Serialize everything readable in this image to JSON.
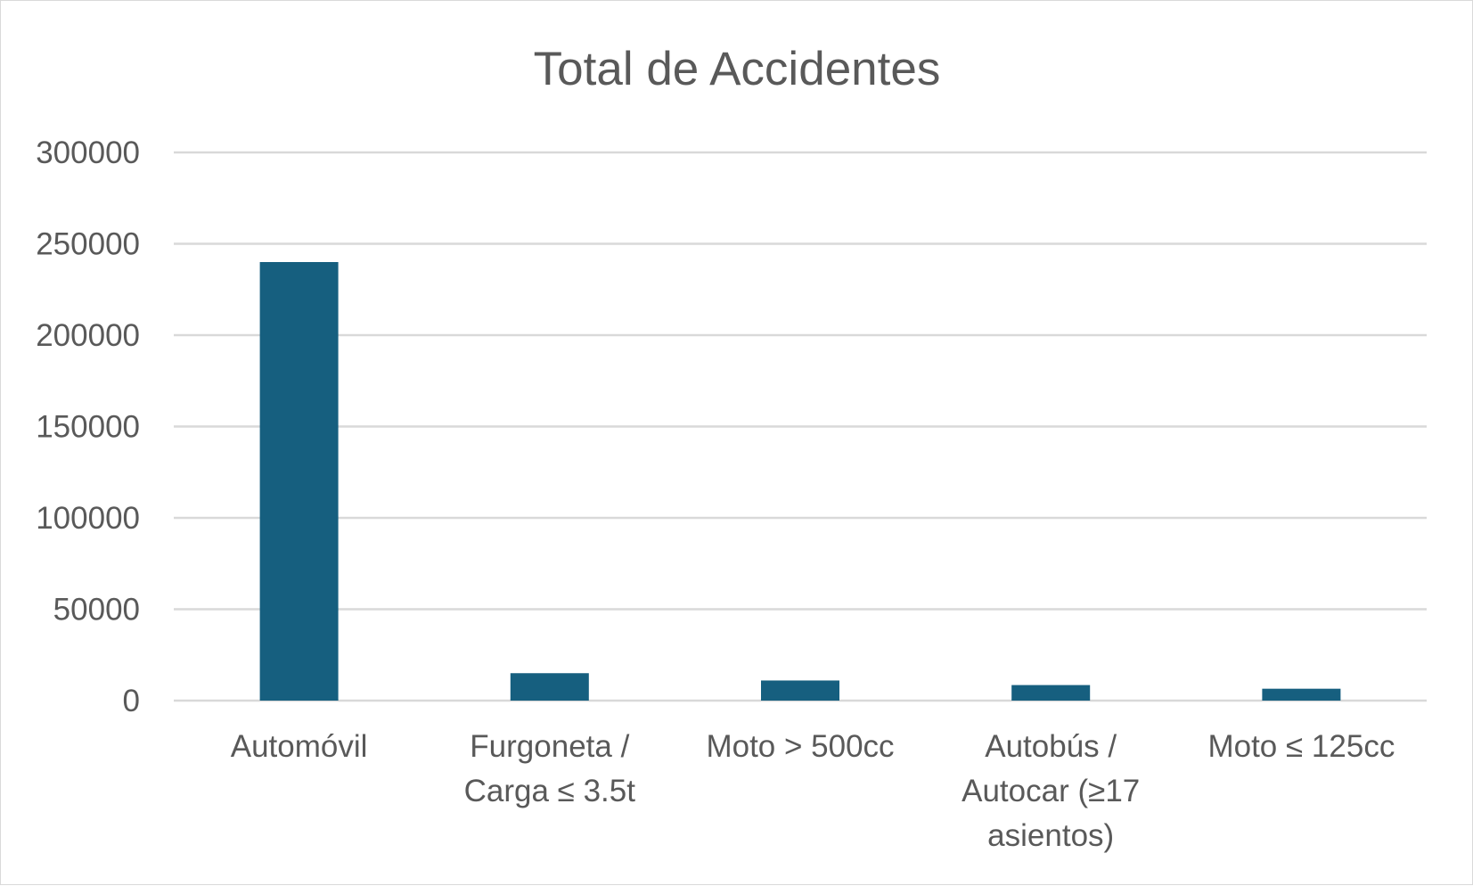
{
  "chart_data": {
    "type": "bar",
    "title": "Total de Accidentes",
    "xlabel": "",
    "ylabel": "",
    "categories": [
      [
        "Automóvil"
      ],
      [
        "Furgoneta /",
        "Carga ≤ 3.5t"
      ],
      [
        "Moto > 500cc"
      ],
      [
        "Autobús /",
        "Autocar (≥17",
        "asientos)"
      ],
      [
        "Moto ≤ 125cc"
      ]
    ],
    "values": [
      240000,
      15000,
      11000,
      8500,
      6500
    ],
    "ylim": [
      0,
      300000
    ],
    "yticks": [
      "0",
      "50000",
      "100000",
      "150000",
      "200000",
      "250000",
      "300000"
    ],
    "grid": true,
    "legend": "none",
    "bar_color": "#165f7f",
    "grid_color": "#d9d9d9",
    "text_color": "#595959"
  }
}
